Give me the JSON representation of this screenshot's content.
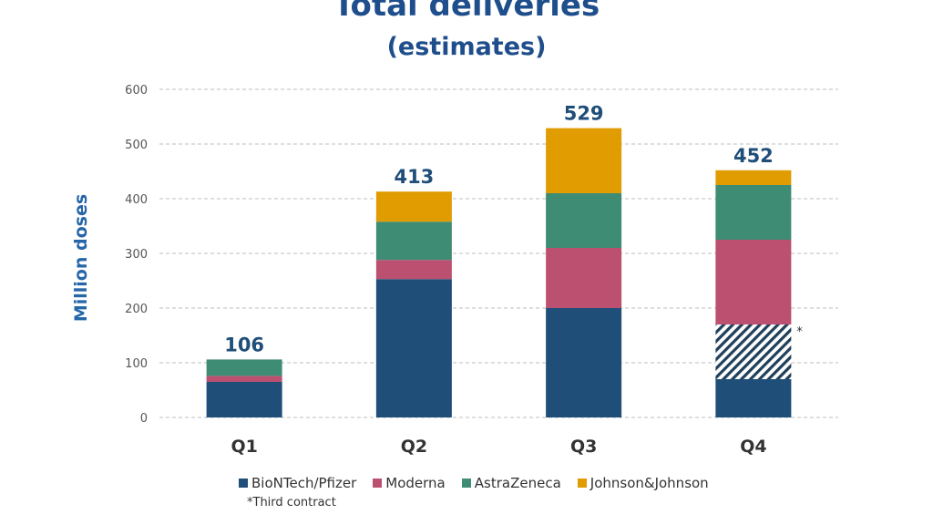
{
  "chart_data": {
    "type": "bar",
    "stacked": true,
    "title": "Total deliveries",
    "subtitle": "(estimates)",
    "xlabel": "",
    "ylabel": "Million doses",
    "ylim": [
      0,
      600
    ],
    "yticks": [
      0,
      100,
      200,
      300,
      400,
      500,
      600
    ],
    "grid": true,
    "legend_position": "bottom",
    "categories": [
      "Q1",
      "Q2",
      "Q3",
      "Q4"
    ],
    "totals": [
      106,
      413,
      529,
      452
    ],
    "series": [
      {
        "name": "BioNTech/Pfizer",
        "color": "#1f4e79",
        "values": [
          65,
          253,
          200,
          70
        ]
      },
      {
        "name": "*Third contract",
        "color": "#1f4e79",
        "pattern": "hatched",
        "values": [
          0,
          0,
          0,
          100
        ]
      },
      {
        "name": "Moderna",
        "color": "#bb5070",
        "values": [
          11,
          35,
          110,
          155
        ]
      },
      {
        "name": "AstraZeneca",
        "color": "#3e8c74",
        "values": [
          30,
          70,
          100,
          100
        ]
      },
      {
        "name": "Johnson&Johnson",
        "color": "#e09c00",
        "values": [
          0,
          55,
          119,
          27
        ]
      }
    ],
    "legend": [
      "BioNTech/Pfizer",
      "Moderna",
      "AstraZeneca",
      "Johnson&Johnson"
    ],
    "footnote": "*Third contract",
    "annotation": "*"
  }
}
